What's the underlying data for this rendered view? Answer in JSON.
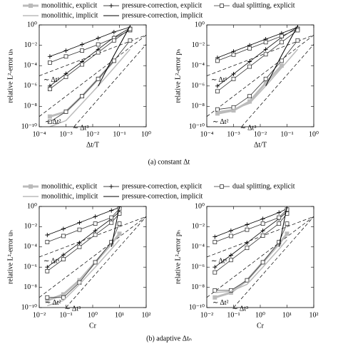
{
  "chart_data": [
    {
      "type": "line",
      "legend": true,
      "log_x": true,
      "log_y": true,
      "grid": false,
      "xlabel": "Δt/T",
      "ylabel": "relative L²-error uₕ",
      "caption": "(a) constant Δt",
      "xlim": [
        0.0001,
        1
      ],
      "ylim": [
        1e-10,
        1
      ],
      "xticks": [
        {
          "value": 0.0001,
          "label": "10⁻⁴"
        },
        {
          "value": 0.001,
          "label": "10⁻³"
        },
        {
          "value": 0.01,
          "label": "10⁻²"
        },
        {
          "value": 0.1,
          "label": "10⁻¹"
        },
        {
          "value": 1,
          "label": "10⁰"
        }
      ],
      "yticks": [
        {
          "value": 1e-10,
          "label": "10⁻¹⁰"
        },
        {
          "value": 1e-08,
          "label": "10⁻⁸"
        },
        {
          "value": 1e-06,
          "label": "10⁻⁶"
        },
        {
          "value": 0.0001,
          "label": "10⁻⁴"
        },
        {
          "value": 0.01,
          "label": "10⁻²"
        },
        {
          "value": 1,
          "label": "10⁰"
        }
      ],
      "x": [
        0.00025,
        0.001,
        0.004,
        0.016,
        0.0625,
        0.25
      ],
      "series": [
        {
          "name": "monolithic, explicit",
          "color": "#bbbbbb",
          "line_width": 3,
          "marker": "square-filled",
          "values": [
            1e-09,
            3e-09,
            1e-07,
            5e-06,
            0.0003,
            null
          ]
        },
        {
          "name": "pressure-correction, explicit",
          "color": "#000000",
          "line_width": 0.8,
          "marker": "plus",
          "values": [
            0.0008,
            0.003,
            0.012,
            0.05,
            0.2,
            0.6
          ]
        },
        {
          "name": "pressure-correction, explicit",
          "color": "#000000",
          "line_width": 0.8,
          "marker": "plus",
          "values": [
            1e-06,
            1.6e-05,
            0.00025,
            0.004,
            0.06,
            0.5
          ]
        },
        {
          "name": "dual splitting, explicit",
          "color": "#333333",
          "line_width": 0.8,
          "marker": "square-open",
          "values": [
            0.0002,
            0.0008,
            0.003,
            0.012,
            0.05,
            0.3
          ]
        },
        {
          "name": "dual splitting, explicit",
          "color": "#333333",
          "line_width": 0.8,
          "marker": "square-open",
          "values": [
            5e-07,
            8e-06,
            0.00013,
            0.002,
            0.03,
            0.4
          ]
        },
        {
          "name": "dual splitting, explicit",
          "color": "#333333",
          "line_width": 0.8,
          "marker": "square-open",
          "values": [
            3e-10,
            3e-09,
            1e-07,
            5e-06,
            0.0003,
            0.03
          ]
        },
        {
          "name": "monolithic, implicit",
          "color": "#bbbbbb",
          "line_width": 1.5,
          "marker": "none",
          "values": [
            1e-10,
            4e-10,
            2e-08,
            1e-06,
            6e-05,
            0.004
          ]
        },
        {
          "name": "pressure-correction, implicit",
          "color": "#000000",
          "line_width": 1,
          "marker": "none",
          "values": [
            null,
            null,
            null,
            1e-06,
            0.001,
            0.8
          ]
        }
      ],
      "reference_lines": [
        {
          "label": "∼ Δt¹",
          "x": [
            0.0001,
            1
          ],
          "values": [
            1e-05,
            0.1
          ]
        },
        {
          "label": "∼ Δt²",
          "x": [
            0.0001,
            1
          ],
          "values": [
            1e-09,
            0.1
          ]
        },
        {
          "label": "∼ Δt³",
          "x": [
            0.002,
            1
          ],
          "values": [
            1e-10,
            0.0125
          ]
        }
      ]
    },
    {
      "type": "line",
      "legend": false,
      "log_x": true,
      "log_y": true,
      "grid": false,
      "xlabel": "Δt/T",
      "ylabel": "relative L²-error pₕ",
      "xlim": [
        0.0001,
        1
      ],
      "ylim": [
        1e-10,
        1
      ],
      "xticks": [
        {
          "value": 0.0001,
          "label": "10⁻⁴"
        },
        {
          "value": 0.001,
          "label": "10⁻³"
        },
        {
          "value": 0.01,
          "label": "10⁻²"
        },
        {
          "value": 0.1,
          "label": "10⁻¹"
        },
        {
          "value": 1,
          "label": "10⁰"
        }
      ],
      "yticks": [
        {
          "value": 1e-10,
          "label": "10⁻¹⁰"
        },
        {
          "value": 1e-08,
          "label": "10⁻⁸"
        },
        {
          "value": 1e-06,
          "label": "10⁻⁶"
        },
        {
          "value": 0.0001,
          "label": "10⁻⁴"
        },
        {
          "value": 0.01,
          "label": "10⁻²"
        },
        {
          "value": 1,
          "label": "10⁰"
        }
      ],
      "x": [
        0.00025,
        0.001,
        0.004,
        0.016,
        0.0625,
        0.25
      ],
      "series": [
        {
          "name": "monolithic, explicit",
          "color": "#bbbbbb",
          "line_width": 3,
          "marker": "square-filled",
          "values": [
            2e-09,
            4e-09,
            3e-08,
            2e-06,
            0.0001,
            null
          ]
        },
        {
          "name": "pressure-correction, explicit",
          "color": "#000000",
          "line_width": 0.8,
          "marker": "plus",
          "values": [
            0.0006,
            0.0025,
            0.01,
            0.04,
            0.15,
            0.6
          ]
        },
        {
          "name": "pressure-correction, explicit",
          "color": "#000000",
          "line_width": 0.8,
          "marker": "plus",
          "values": [
            1e-06,
            1.5e-05,
            0.00025,
            0.004,
            0.06,
            0.6
          ]
        },
        {
          "name": "dual splitting, explicit",
          "color": "#333333",
          "line_width": 0.8,
          "marker": "square-open",
          "values": [
            0.0003,
            0.0012,
            0.005,
            0.02,
            0.08,
            0.4
          ]
        },
        {
          "name": "dual splitting, explicit",
          "color": "#333333",
          "line_width": 0.8,
          "marker": "square-open",
          "values": [
            3e-07,
            5e-06,
            8e-05,
            0.0013,
            0.02,
            0.3
          ]
        },
        {
          "name": "dual splitting, explicit",
          "color": "#333333",
          "line_width": 0.8,
          "marker": "square-open",
          "values": [
            5e-09,
            8e-09,
            1e-07,
            5e-06,
            0.0003,
            0.03
          ]
        },
        {
          "name": "monolithic, implicit",
          "color": "#bbbbbb",
          "line_width": 1.5,
          "marker": "none",
          "values": [
            3e-09,
            5e-09,
            2e-08,
            1e-06,
            6e-05,
            0.004
          ]
        },
        {
          "name": "pressure-correction, implicit",
          "color": "#000000",
          "line_width": 1,
          "marker": "none",
          "values": [
            null,
            null,
            null,
            1e-06,
            0.001,
            0.8
          ]
        }
      ],
      "reference_lines": [
        {
          "label": "∼ Δt¹",
          "x": [
            0.0001,
            1
          ],
          "values": [
            1e-05,
            0.1
          ]
        },
        {
          "label": "∼ Δt²",
          "x": [
            0.0001,
            1
          ],
          "values": [
            1e-09,
            0.1
          ]
        },
        {
          "label": "∼ Δt³",
          "x": [
            0.002,
            1
          ],
          "values": [
            1e-10,
            0.0125
          ]
        }
      ]
    },
    {
      "type": "line",
      "legend": true,
      "log_x": true,
      "log_y": true,
      "grid": false,
      "xlabel": "Cr",
      "ylabel": "relative L²-error uₕ",
      "caption": "(b) adaptive Δtₙ",
      "xlim": [
        0.01,
        100
      ],
      "ylim": [
        1e-10,
        1
      ],
      "xticks": [
        {
          "value": 0.01,
          "label": "10⁻²"
        },
        {
          "value": 0.1,
          "label": "10⁻¹"
        },
        {
          "value": 1,
          "label": "10⁰"
        },
        {
          "value": 10,
          "label": "10¹"
        },
        {
          "value": 100,
          "label": "10²"
        }
      ],
      "yticks": [
        {
          "value": 1e-10,
          "label": "10⁻¹⁰"
        },
        {
          "value": 1e-08,
          "label": "10⁻⁸"
        },
        {
          "value": 1e-06,
          "label": "10⁻⁶"
        },
        {
          "value": 0.0001,
          "label": "10⁻⁴"
        },
        {
          "value": 0.01,
          "label": "10⁻²"
        },
        {
          "value": 1,
          "label": "10⁰"
        }
      ],
      "x": [
        0.02,
        0.08,
        0.32,
        1.25,
        5,
        10
      ],
      "series": [
        {
          "name": "monolithic, explicit",
          "color": "#bbbbbb",
          "line_width": 3,
          "marker": "square-filled",
          "values": [
            5e-10,
            2e-09,
            5e-08,
            3e-06,
            0.0002,
            0.002
          ]
        },
        {
          "name": "pressure-correction, explicit",
          "color": "#000000",
          "line_width": 0.8,
          "marker": "plus",
          "values": [
            0.0015,
            0.006,
            0.025,
            0.1,
            0.4,
            0.8
          ]
        },
        {
          "name": "pressure-correction, explicit",
          "color": "#000000",
          "line_width": 0.8,
          "marker": "plus",
          "values": [
            1e-06,
            1.6e-05,
            0.00025,
            0.004,
            0.06,
            0.3
          ]
        },
        {
          "name": "dual splitting, explicit",
          "color": "#333333",
          "line_width": 0.8,
          "marker": "square-open",
          "values": [
            0.0003,
            0.0012,
            0.005,
            0.02,
            0.08,
            0.6
          ]
        },
        {
          "name": "dual splitting, explicit",
          "color": "#333333",
          "line_width": 0.8,
          "marker": "square-open",
          "values": [
            4e-07,
            6e-06,
            0.0001,
            0.0016,
            0.025,
            0.2
          ]
        },
        {
          "name": "dual splitting, explicit",
          "color": "#333333",
          "line_width": 0.8,
          "marker": "square-open",
          "values": [
            1e-09,
            1e-09,
            3e-08,
            3e-06,
            0.0003,
            0.02
          ]
        },
        {
          "name": "monolithic, implicit",
          "color": "#bbbbbb",
          "line_width": 1.5,
          "marker": "none",
          "values": [
            1.5e-10,
            5e-10,
            2e-08,
            1e-06,
            6e-05,
            0.0005
          ]
        },
        {
          "name": "pressure-correction, implicit",
          "color": "#000000",
          "line_width": 1,
          "marker": "none",
          "values": [
            null,
            null,
            null,
            null,
            0.0001,
            1
          ]
        }
      ],
      "reference_lines": [
        {
          "label": "∼ Δt¹",
          "x": [
            0.01,
            100
          ],
          "values": [
            1e-05,
            0.1
          ]
        },
        {
          "label": "∼ Δt²",
          "x": [
            0.01,
            100
          ],
          "values": [
            1e-09,
            0.1
          ]
        },
        {
          "label": "∼ Δt³",
          "x": [
            0.1,
            100
          ],
          "values": [
            1e-10,
            0.1
          ]
        }
      ]
    },
    {
      "type": "line",
      "legend": false,
      "log_x": true,
      "log_y": true,
      "grid": false,
      "xlabel": "Cr",
      "ylabel": "relative L²-error pₕ",
      "xlim": [
        0.01,
        100
      ],
      "ylim": [
        1e-10,
        1
      ],
      "xticks": [
        {
          "value": 0.01,
          "label": "10⁻²"
        },
        {
          "value": 0.1,
          "label": "10⁻¹"
        },
        {
          "value": 1,
          "label": "10⁰"
        },
        {
          "value": 10,
          "label": "10¹"
        },
        {
          "value": 100,
          "label": "10²"
        }
      ],
      "yticks": [
        {
          "value": 1e-10,
          "label": "10⁻¹⁰"
        },
        {
          "value": 1e-08,
          "label": "10⁻⁸"
        },
        {
          "value": 1e-06,
          "label": "10⁻⁶"
        },
        {
          "value": 0.0001,
          "label": "10⁻⁴"
        },
        {
          "value": 0.01,
          "label": "10⁻²"
        },
        {
          "value": 1,
          "label": "10⁰"
        }
      ],
      "x": [
        0.02,
        0.08,
        0.32,
        1.25,
        5,
        10
      ],
      "series": [
        {
          "name": "monolithic, explicit",
          "color": "#bbbbbb",
          "line_width": 3,
          "marker": "square-filled",
          "values": [
            1e-09,
            3e-09,
            5e-08,
            3e-06,
            0.0002,
            0.002
          ]
        },
        {
          "name": "pressure-correction, explicit",
          "color": "#000000",
          "line_width": 0.8,
          "marker": "plus",
          "values": [
            0.001,
            0.004,
            0.016,
            0.06,
            0.25,
            0.6
          ]
        },
        {
          "name": "pressure-correction, explicit",
          "color": "#000000",
          "line_width": 0.8,
          "marker": "plus",
          "values": [
            1e-06,
            1.5e-05,
            0.00025,
            0.004,
            0.06,
            0.3
          ]
        },
        {
          "name": "dual splitting, explicit",
          "color": "#333333",
          "line_width": 0.8,
          "marker": "square-open",
          "values": [
            0.0003,
            0.0012,
            0.005,
            0.02,
            0.08,
            0.5
          ]
        },
        {
          "name": "dual splitting, explicit",
          "color": "#333333",
          "line_width": 0.8,
          "marker": "square-open",
          "values": [
            3e-07,
            5e-06,
            8e-05,
            0.0013,
            0.02,
            0.2
          ]
        },
        {
          "name": "dual splitting, explicit",
          "color": "#333333",
          "line_width": 0.8,
          "marker": "square-open",
          "values": [
            5e-09,
            5e-09,
            5e-08,
            3e-06,
            0.0003,
            0.02
          ]
        },
        {
          "name": "monolithic, implicit",
          "color": "#bbbbbb",
          "line_width": 1.5,
          "marker": "none",
          "values": [
            3e-09,
            4e-09,
            2e-08,
            1e-06,
            6e-05,
            0.0005
          ]
        },
        {
          "name": "pressure-correction, implicit",
          "color": "#000000",
          "line_width": 1,
          "marker": "none",
          "values": [
            null,
            null,
            null,
            null,
            0.0001,
            1
          ]
        }
      ],
      "reference_lines": [
        {
          "label": "∼ Δt¹",
          "x": [
            0.01,
            100
          ],
          "values": [
            1e-05,
            0.1
          ]
        },
        {
          "label": "∼ Δt²",
          "x": [
            0.01,
            100
          ],
          "values": [
            1e-09,
            0.1
          ]
        },
        {
          "label": "∼ Δt³",
          "x": [
            0.1,
            100
          ],
          "values": [
            1e-10,
            0.1
          ]
        }
      ]
    }
  ]
}
